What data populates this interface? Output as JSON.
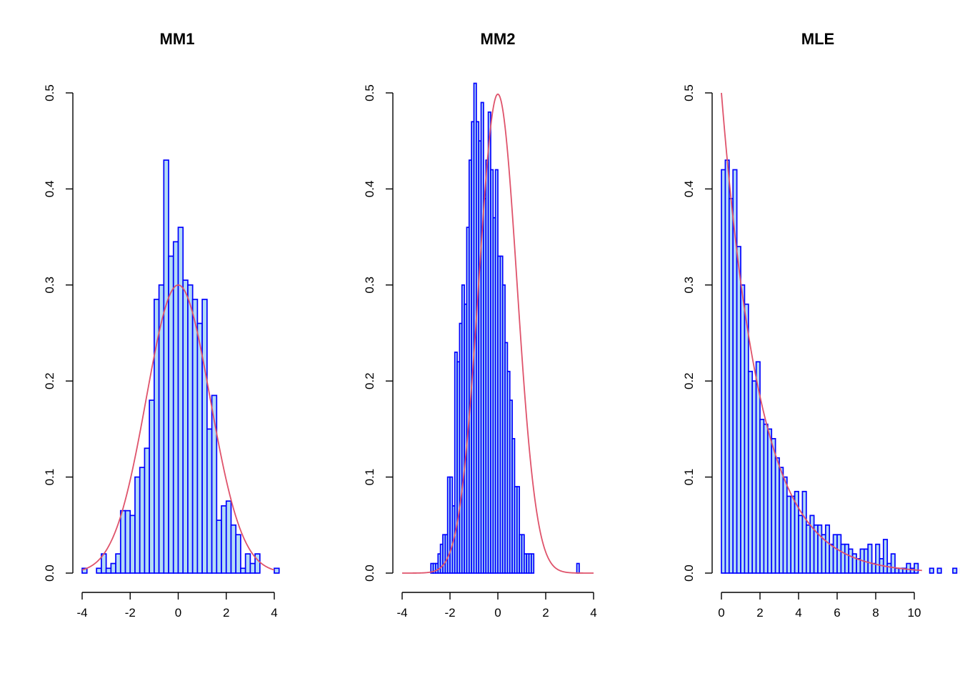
{
  "colors": {
    "bar_fill": "#b3dcf5",
    "bar_stroke": "#0000ff",
    "curve": "#df536b",
    "axis": "#000000",
    "background": "#ffffff"
  },
  "chart_data": [
    {
      "type": "bar",
      "title": "MM1",
      "xlim": [
        -4,
        4.2
      ],
      "ylim": [
        0,
        0.5
      ],
      "xticks": [
        -4,
        -2,
        0,
        2,
        4
      ],
      "xtick_labels": [
        "-4",
        "-2",
        "0",
        "2",
        "4"
      ],
      "yticks": [
        0,
        0.1,
        0.2,
        0.3,
        0.4,
        0.5
      ],
      "ytick_labels": [
        "0.0",
        "0.1",
        "0.2",
        "0.3",
        "0.4",
        "0.5"
      ],
      "bin_start": -4,
      "bin_width": 0.2,
      "values": [
        0.005,
        0,
        0,
        0.005,
        0.02,
        0.005,
        0.01,
        0.02,
        0.065,
        0.065,
        0.06,
        0.1,
        0.11,
        0.13,
        0.18,
        0.285,
        0.3,
        0.43,
        0.33,
        0.345,
        0.36,
        0.305,
        0.3,
        0.285,
        0.26,
        0.285,
        0.15,
        0.185,
        0.055,
        0.07,
        0.075,
        0.05,
        0.04,
        0.005,
        0.02,
        0.01,
        0.02,
        0,
        0,
        0,
        0.005
      ],
      "grid": false,
      "curve": {
        "label": "",
        "kind": "normal",
        "mean": 0,
        "sd": 1.33,
        "x_range": [
          -4,
          4
        ]
      }
    },
    {
      "type": "bar",
      "title": "MM2",
      "xlim": [
        -4,
        4
      ],
      "ylim": [
        0,
        0.5
      ],
      "xticks": [
        -4,
        -2,
        0,
        2,
        4
      ],
      "xtick_labels": [
        "-4",
        "-2",
        "0",
        "2",
        "4"
      ],
      "yticks": [
        0,
        0.1,
        0.2,
        0.3,
        0.4,
        0.5
      ],
      "ytick_labels": [
        "0.0",
        "0.1",
        "0.2",
        "0.3",
        "0.4",
        "0.5"
      ],
      "bin_start": -2.8,
      "bin_width": 0.1,
      "values": [
        0.01,
        0.01,
        0.01,
        0.02,
        0.03,
        0.04,
        0.04,
        0.1,
        0.1,
        0.07,
        0.23,
        0.22,
        0.26,
        0.3,
        0.28,
        0.36,
        0.43,
        0.47,
        0.51,
        0.47,
        0.45,
        0.49,
        0.39,
        0.43,
        0.48,
        0.42,
        0.37,
        0.42,
        0.33,
        0.33,
        0.3,
        0.24,
        0.21,
        0.18,
        0.14,
        0.09,
        0.09,
        0.04,
        0.04,
        0.02,
        0.02,
        0.02,
        0.02,
        0,
        0,
        0,
        0,
        0,
        0,
        0,
        0,
        0,
        0,
        0,
        0,
        0,
        0,
        0,
        0,
        0,
        0,
        0.01
      ],
      "grid": false,
      "curve": {
        "label": "",
        "kind": "normal",
        "mean": 0,
        "sd": 0.8,
        "x_range": [
          -4,
          4
        ]
      }
    },
    {
      "type": "bar",
      "title": "MLE",
      "xlim": [
        0,
        10.4
      ],
      "ylim": [
        0,
        0.5
      ],
      "xticks": [
        0,
        2,
        4,
        6,
        8,
        10
      ],
      "xtick_labels": [
        "0",
        "2",
        "4",
        "6",
        "8",
        "10"
      ],
      "yticks": [
        0,
        0.1,
        0.2,
        0.3,
        0.4,
        0.5
      ],
      "ytick_labels": [
        "0.0",
        "0.1",
        "0.2",
        "0.3",
        "0.4",
        "0.5"
      ],
      "bin_start": 0,
      "bin_width": 0.2,
      "values": [
        0.42,
        0.43,
        0.39,
        0.42,
        0.34,
        0.3,
        0.28,
        0.21,
        0.2,
        0.22,
        0.16,
        0.155,
        0.15,
        0.14,
        0.12,
        0.11,
        0.1,
        0.08,
        0.08,
        0.085,
        0.06,
        0.085,
        0.05,
        0.06,
        0.05,
        0.05,
        0.04,
        0.05,
        0.03,
        0.04,
        0.04,
        0.03,
        0.03,
        0.025,
        0.02,
        0.015,
        0.025,
        0.025,
        0.03,
        0.01,
        0.03,
        0.015,
        0.035,
        0.01,
        0.02,
        0.005,
        0.005,
        0.005,
        0.01,
        0.005,
        0.01,
        0,
        0,
        0,
        0.005,
        0,
        0.005,
        0,
        0,
        0,
        0.005,
        0,
        0.005
      ],
      "grid": false,
      "curve": {
        "label": "",
        "kind": "exponential",
        "rate": 0.5,
        "x_range": [
          0,
          10.4
        ]
      }
    }
  ]
}
